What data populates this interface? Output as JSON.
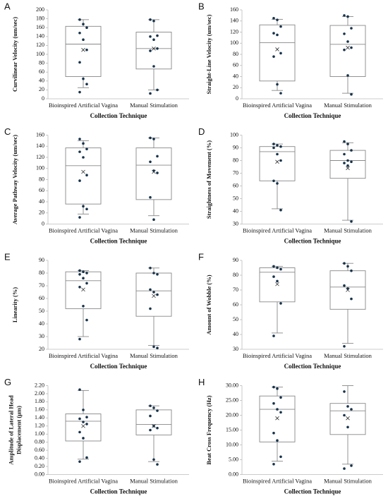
{
  "chart_data": [
    {
      "type": "box",
      "panel": "A",
      "ylabel": [
        "Curvilinear Velocity (um/sec)"
      ],
      "xlabel": "Collection Technique",
      "categories": [
        "Bioinspired Artificial Vagina",
        "Manual Stimulation"
      ],
      "color": "#888888",
      "point_color": "#17324a",
      "ylim": [
        0,
        200
      ],
      "yticks": [
        0,
        20,
        40,
        60,
        80,
        100,
        120,
        140,
        160,
        180,
        200
      ],
      "boxes": [
        {
          "min": 25,
          "q1": 50,
          "median": 123,
          "q3": 163,
          "max": 178,
          "mean": 110,
          "points": [
            178,
            168,
            160,
            148,
            133,
            110,
            82,
            45,
            33,
            15
          ]
        },
        {
          "min": 20,
          "q1": 67,
          "median": 113,
          "q3": 150,
          "max": 178,
          "mean": 113,
          "points": [
            178,
            175,
            142,
            140,
            133,
            113,
            108,
            73,
            20,
            12
          ]
        }
      ]
    },
    {
      "type": "box",
      "panel": "B",
      "ylabel": [
        "Straight-Line Velocity (um/sec)"
      ],
      "xlabel": "Collection Technique",
      "categories": [
        "Bioinspired Artificial Vagina",
        "Manual Stimulation"
      ],
      "color": "#888888",
      "point_color": "#17324a",
      "ylim": [
        0,
        160
      ],
      "yticks": [
        0,
        20,
        40,
        60,
        80,
        100,
        120,
        140,
        160
      ],
      "boxes": [
        {
          "min": 15,
          "q1": 32,
          "median": 101,
          "q3": 133,
          "max": 143,
          "mean": 89,
          "points": [
            145,
            142,
            130,
            118,
            115,
            82,
            76,
            26,
            10
          ]
        },
        {
          "min": 10,
          "q1": 40,
          "median": 98,
          "q3": 132,
          "max": 148,
          "mean": 92,
          "points": [
            150,
            148,
            127,
            117,
            103,
            92,
            88,
            42,
            8
          ]
        }
      ]
    },
    {
      "type": "box",
      "panel": "C",
      "ylabel": [
        "Average Pathway Velocity (um/sec)"
      ],
      "xlabel": "Collection Technique",
      "categories": [
        "Bioinspired Artificial Vagina",
        "Manual Stimulation"
      ],
      "color": "#888888",
      "point_color": "#17324a",
      "ylim": [
        0,
        160
      ],
      "yticks": [
        0,
        20,
        40,
        60,
        80,
        100,
        120,
        140,
        160
      ],
      "boxes": [
        {
          "min": 18,
          "q1": 36,
          "median": 105,
          "q3": 137,
          "max": 150,
          "mean": 94,
          "points": [
            153,
            145,
            135,
            130,
            120,
            88,
            78,
            32,
            27,
            12
          ]
        },
        {
          "min": 15,
          "q1": 44,
          "median": 106,
          "q3": 137,
          "max": 155,
          "mean": 94,
          "points": [
            155,
            153,
            122,
            112,
            96,
            92,
            48,
            8
          ]
        }
      ]
    },
    {
      "type": "box",
      "panel": "D",
      "ylabel": [
        "Straightness of Movement (%)"
      ],
      "xlabel": "Collection Technique",
      "categories": [
        "Bioinspired Artificial Vagina",
        "Manual Stimulation"
      ],
      "color": "#888888",
      "point_color": "#17324a",
      "ylim": [
        30,
        100
      ],
      "yticks": [
        30,
        40,
        50,
        60,
        70,
        80,
        90,
        100
      ],
      "boxes": [
        {
          "min": 42,
          "q1": 64,
          "median": 87,
          "q3": 91,
          "max": 93,
          "mean": 79,
          "points": [
            93,
            92,
            91,
            90,
            85,
            80,
            64,
            62,
            41
          ]
        },
        {
          "min": 33,
          "q1": 66,
          "median": 80,
          "q3": 88,
          "max": 94,
          "mean": 74,
          "points": [
            95,
            93,
            88,
            85,
            80,
            79,
            78,
            76,
            32
          ]
        }
      ]
    },
    {
      "type": "box",
      "panel": "E",
      "ylabel": [
        "Linearity (%)"
      ],
      "xlabel": "Collection Technique",
      "categories": [
        "Bioinspired Artificial Vagina",
        "Manual Stimulation"
      ],
      "color": "#888888",
      "point_color": "#17324a",
      "ylim": [
        20,
        90
      ],
      "yticks": [
        20,
        30,
        40,
        50,
        60,
        70,
        80,
        90
      ],
      "boxes": [
        {
          "min": 30,
          "q1": 52,
          "median": 74,
          "q3": 81,
          "max": 82,
          "mean": 67,
          "points": [
            82,
            81,
            80,
            79,
            76,
            72,
            69,
            54,
            43,
            28
          ]
        },
        {
          "min": 23,
          "q1": 46,
          "median": 66,
          "q3": 80,
          "max": 84,
          "mean": 62,
          "points": [
            84,
            80,
            79,
            67,
            65,
            63,
            52,
            22,
            21
          ]
        }
      ]
    },
    {
      "type": "box",
      "panel": "F",
      "ylabel": [
        "Amount of Wobble (%)"
      ],
      "xlabel": "Collection Technique",
      "categories": [
        "Bioinspired Artificial Vagina",
        "Manual Stimulation"
      ],
      "color": "#888888",
      "point_color": "#17324a",
      "ylim": [
        30,
        90
      ],
      "yticks": [
        30,
        40,
        50,
        60,
        70,
        80,
        90
      ],
      "boxes": [
        {
          "min": 41,
          "q1": 62,
          "median": 82,
          "q3": 85,
          "max": 86,
          "mean": 74,
          "points": [
            86,
            85,
            84,
            79,
            76,
            61,
            39
          ]
        },
        {
          "min": 34,
          "q1": 57,
          "median": 72,
          "q3": 83,
          "max": 88,
          "mean": 70,
          "points": [
            88,
            86,
            83,
            73,
            71,
            64,
            32
          ]
        }
      ]
    },
    {
      "type": "box",
      "panel": "G",
      "ylabel": [
        "Amplitude of Lateral Head",
        "Displacement (μm)"
      ],
      "xlabel": "Collection Technique",
      "categories": [
        "Bioinspired Artificial Vagina",
        "Manual Stimulation"
      ],
      "color": "#888888",
      "point_color": "#17324a",
      "ylim": [
        0,
        2.2
      ],
      "yticks": [
        {
          "value": 0,
          "label": "0.00"
        },
        {
          "value": 0.2,
          "label": "0.20"
        },
        {
          "value": 0.4,
          "label": "0.40"
        },
        {
          "value": 0.6,
          "label": "0.60"
        },
        {
          "value": 0.8,
          "label": "0.80"
        },
        {
          "value": 1,
          "label": "1.00"
        },
        {
          "value": 1.2,
          "label": "1.20"
        },
        {
          "value": 1.4,
          "label": "1.40"
        },
        {
          "value": 1.6,
          "label": "1.60"
        },
        {
          "value": 1.8,
          "label": "1.80"
        },
        {
          "value": 2,
          "label": "2.00"
        },
        {
          "value": 2.2,
          "label": "2.20"
        }
      ],
      "boxes": [
        {
          "min": 0.38,
          "q1": 0.83,
          "median": 1.32,
          "q3": 1.5,
          "max": 2.08,
          "mean": 1.2,
          "points": [
            2.1,
            1.6,
            1.42,
            1.38,
            1.3,
            1.25,
            1.05,
            0.9,
            0.42,
            0.32
          ]
        },
        {
          "min": 0.32,
          "q1": 0.98,
          "median": 1.24,
          "q3": 1.6,
          "max": 1.7,
          "mean": 1.2,
          "points": [
            1.7,
            1.65,
            1.58,
            1.45,
            1.2,
            1.15,
            1.1,
            0.37,
            0.25
          ]
        }
      ]
    },
    {
      "type": "box",
      "panel": "H",
      "ylabel": [
        "Beat Cross Frequency (Hz)"
      ],
      "xlabel": "Collection Technique",
      "categories": [
        "Bioinspired Artificial Vagina",
        "Manual Stimulation"
      ],
      "color": "#888888",
      "point_color": "#17324a",
      "ylim": [
        0,
        30
      ],
      "yticks": [
        {
          "value": 0,
          "label": "0.00"
        },
        {
          "value": 5,
          "label": "5.00"
        },
        {
          "value": 10,
          "label": "10.00"
        },
        {
          "value": 15,
          "label": "15.00"
        },
        {
          "value": 20,
          "label": "20.00"
        },
        {
          "value": 25,
          "label": "25.00"
        },
        {
          "value": 30,
          "label": "30.00"
        }
      ],
      "boxes": [
        {
          "min": 4.5,
          "q1": 11,
          "median": 22,
          "q3": 26.5,
          "max": 29.5,
          "mean": 19,
          "points": [
            29.5,
            29,
            26,
            24,
            22,
            21,
            14,
            11.5,
            6,
            3.5
          ]
        },
        {
          "min": 3.5,
          "q1": 13.5,
          "median": 21.5,
          "q3": 24,
          "max": 30,
          "mean": 19,
          "points": [
            28,
            23,
            22,
            20,
            16,
            3,
            2
          ]
        }
      ]
    }
  ]
}
